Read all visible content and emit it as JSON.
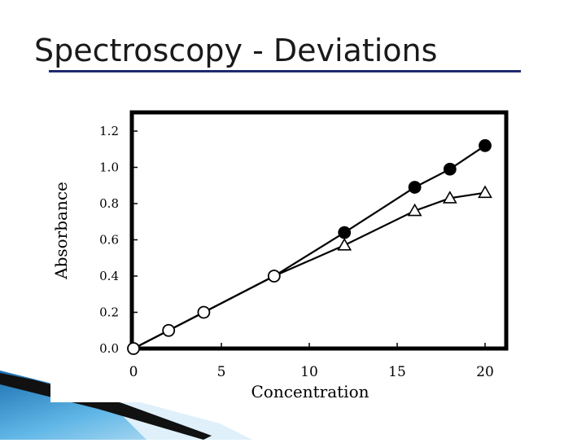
{
  "slide": {
    "title": "Spectroscopy - Deviations"
  },
  "colors": {
    "title_rule": "#1f2a6e",
    "accent_blue": "#2f8fd0",
    "series": "#000000"
  },
  "chart_data": {
    "type": "line",
    "title": "",
    "xlabel": "Concentration",
    "ylabel": "Absorbance",
    "xlim": [
      0,
      20
    ],
    "ylim": [
      0,
      1.2
    ],
    "xticks": [
      "0",
      "5",
      "10",
      "15",
      "20"
    ],
    "yticks": [
      "0.0",
      "0.2",
      "0.4",
      "0.6",
      "0.8",
      "1.0",
      "1.2"
    ],
    "grid": false,
    "legend": "none",
    "series": [
      {
        "marker": "filled-circle",
        "x": [
          0,
          2,
          4,
          8,
          12,
          16,
          18,
          20
        ],
        "y": [
          0.0,
          0.1,
          0.2,
          0.4,
          0.64,
          0.89,
          0.99,
          1.12
        ]
      },
      {
        "marker": "open-triangle",
        "x": [
          0,
          2,
          4,
          8,
          12,
          16,
          18,
          20
        ],
        "y": [
          0.0,
          0.1,
          0.2,
          0.4,
          0.57,
          0.76,
          0.83,
          0.86
        ]
      }
    ]
  }
}
